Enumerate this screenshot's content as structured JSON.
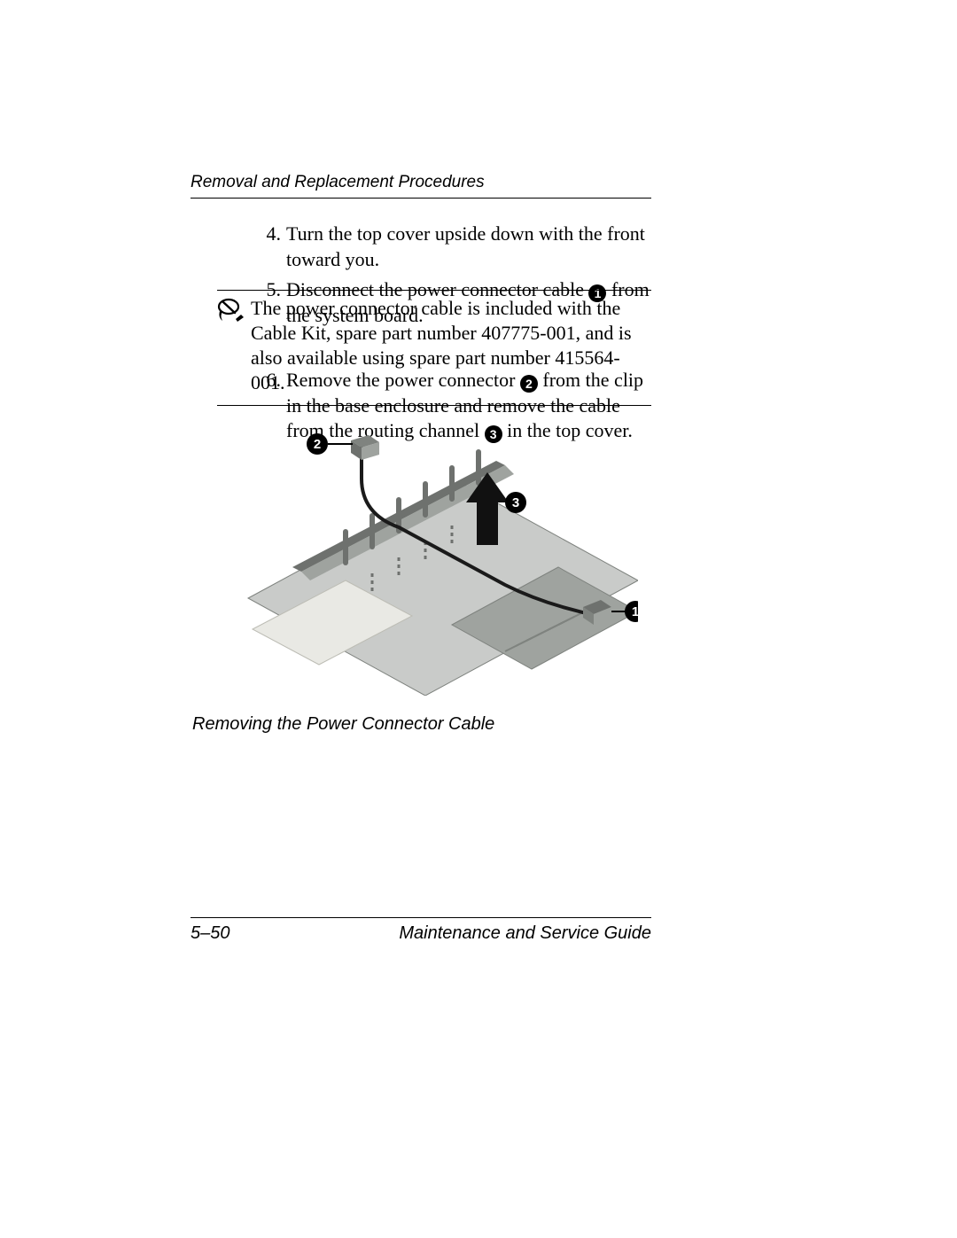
{
  "header": {
    "section_title": "Removal and Replacement Procedures"
  },
  "steps_a": [
    {
      "n": "4.",
      "text_before": "Turn the top cover upside down with the front toward you.",
      "callout": "",
      "text_after": ""
    },
    {
      "n": "5.",
      "text_before": "Disconnect the power connector cable ",
      "callout": "1",
      "text_after": " from the system board."
    }
  ],
  "note": {
    "text": "The power connector cable is included with the Cable Kit, spare part number 407775-001, and is also available using spare part number 415564-001."
  },
  "step6": {
    "n": "6.",
    "seg1": "Remove the power connector ",
    "c1": "2",
    "seg2": " from the clip in the base enclosure and remove the cable from the routing channel ",
    "c2": "3",
    "seg3": " in the top cover."
  },
  "figure": {
    "caption": "Removing the Power Connector Cable",
    "callouts": {
      "one": "1",
      "two": "2",
      "three": "3"
    },
    "colors": {
      "board_top": "#c9cbc9",
      "board_side": "#9fa39f",
      "board_dark": "#7f837f",
      "chip": "#e9e9e4",
      "chip_edge": "#bdbdb5",
      "ridge": "#6e716e",
      "cable": "#1a1a1a",
      "arrow": "#111111"
    }
  },
  "footer": {
    "page": "5–50",
    "doc": "Maintenance and Service Guide"
  }
}
